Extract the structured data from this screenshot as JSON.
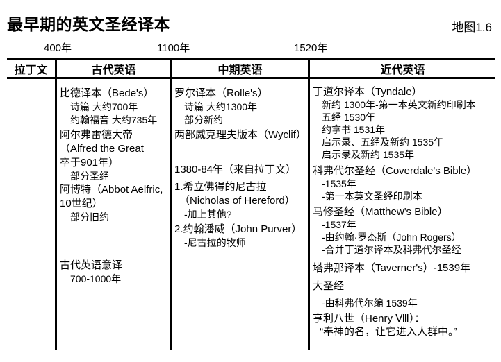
{
  "page": {
    "title": "最早期的英文圣经译本",
    "map_label": "地图1.6",
    "background_color": "#ffffff",
    "text_color": "#000000",
    "line_color": "#000000"
  },
  "timeline": {
    "year1": "400年",
    "year2": "1100年",
    "year3": "1520年"
  },
  "header": {
    "latin": "拉丁文"
  },
  "columns": {
    "old": {
      "header": "古代英语",
      "lines": [
        "比德译本（Bede's）",
        "诗篇 大约700年",
        "约翰福音 大约735年",
        "阿尔弗雷德大帝",
        "（Alfred the Great",
        "卒于901年）",
        "部分圣经",
        "阿博特（Abbot Aelfric,",
        "10世纪）",
        "部分旧约",
        "古代英语意译",
        "700-1000年"
      ]
    },
    "middle": {
      "header": "中期英语",
      "lines": [
        "罗尔译本（Rolle's）",
        "诗篇 大约1300年",
        "部分新约",
        "两部威克理夫版本（Wyclif）",
        "1380-84年（来自拉丁文）",
        "1.希立佛得的尼古拉",
        "（Nicholas of Hereford）",
        "-加上其他?",
        "2.约翰潘威（John Purver）",
        "-尼古拉的牧师"
      ]
    },
    "modern": {
      "header": "近代英语",
      "lines": [
        "丁道尔译本（Tyndale）",
        "新约 1300年-第一本英文新约印刷本",
        "五经 1530年",
        "约拿书 1531年",
        "启示录、五经及新约 1535年",
        "启示录及新约 1535年",
        "科弗代尔圣经（Coverdale's Bible）",
        "-1535年",
        "-第一本英文圣经印刷本",
        "马修圣经（Matthew's Bible）",
        "-1537年",
        "-由约翰·罗杰斯（John Rogers）",
        "-合并丁道尔译本及科弗代尔圣经",
        "塔弗那译本（Taverner's）-1539年",
        "大圣经",
        "-由科弗代尔编 1539年",
        "亨利八世（Henry Ⅷ）：",
        "“奉神的名，让它进入人群中。”"
      ]
    }
  }
}
